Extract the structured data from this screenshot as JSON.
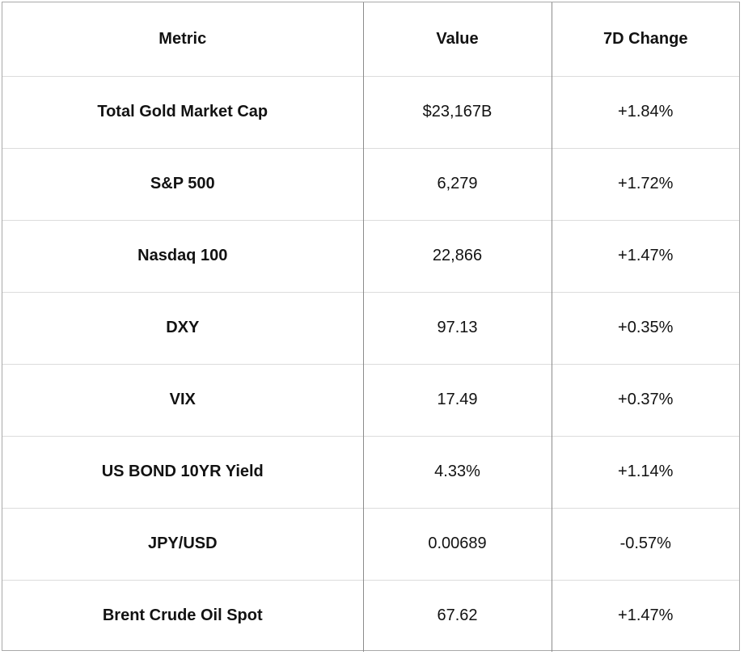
{
  "table": {
    "headers": {
      "metric": "Metric",
      "value": "Value",
      "change": "7D Change"
    },
    "rows": [
      {
        "metric": "Total Gold Market Cap",
        "value": "$23,167B",
        "change": "+1.84%"
      },
      {
        "metric": "S&P 500",
        "value": "6,279",
        "change": "+1.72%"
      },
      {
        "metric": "Nasdaq 100",
        "value": "22,866",
        "change": "+1.47%"
      },
      {
        "metric": "DXY",
        "value": "97.13",
        "change": "+0.35%"
      },
      {
        "metric": "VIX",
        "value": "17.49",
        "change": "+0.37%"
      },
      {
        "metric": "US BOND 10YR Yield",
        "value": "4.33%",
        "change": "+1.14%"
      },
      {
        "metric": "JPY/USD",
        "value": "0.00689",
        "change": "-0.57%"
      },
      {
        "metric": "Brent Crude Oil Spot",
        "value": "67.62",
        "change": "+1.47%"
      }
    ]
  },
  "chart_data": {
    "type": "table",
    "title": "",
    "columns": [
      "Metric",
      "Value",
      "7D Change"
    ],
    "rows": [
      [
        "Total Gold Market Cap",
        "$23,167B",
        "+1.84%"
      ],
      [
        "S&P 500",
        "6,279",
        "+1.72%"
      ],
      [
        "Nasdaq 100",
        "22,866",
        "+1.47%"
      ],
      [
        "DXY",
        "97.13",
        "+0.35%"
      ],
      [
        "VIX",
        "17.49",
        "+0.37%"
      ],
      [
        "US BOND 10YR Yield",
        "4.33%",
        "+1.14%"
      ],
      [
        "JPY/USD",
        "0.00689",
        "-0.57%"
      ],
      [
        "Brent Crude Oil Spot",
        "67.62",
        "+1.47%"
      ]
    ],
    "numeric_values": [
      23167,
      6279,
      22866,
      97.13,
      17.49,
      4.33,
      0.00689,
      67.62
    ],
    "change_pct_7d": [
      1.84,
      1.72,
      1.47,
      0.35,
      0.37,
      1.14,
      -0.57,
      1.47
    ]
  },
  "colors": {
    "background": "#ffffff",
    "text": "#121212",
    "outer_border": "#a9a9a9",
    "column_border": "#8c8c8c",
    "row_border": "#dcdcdc"
  }
}
